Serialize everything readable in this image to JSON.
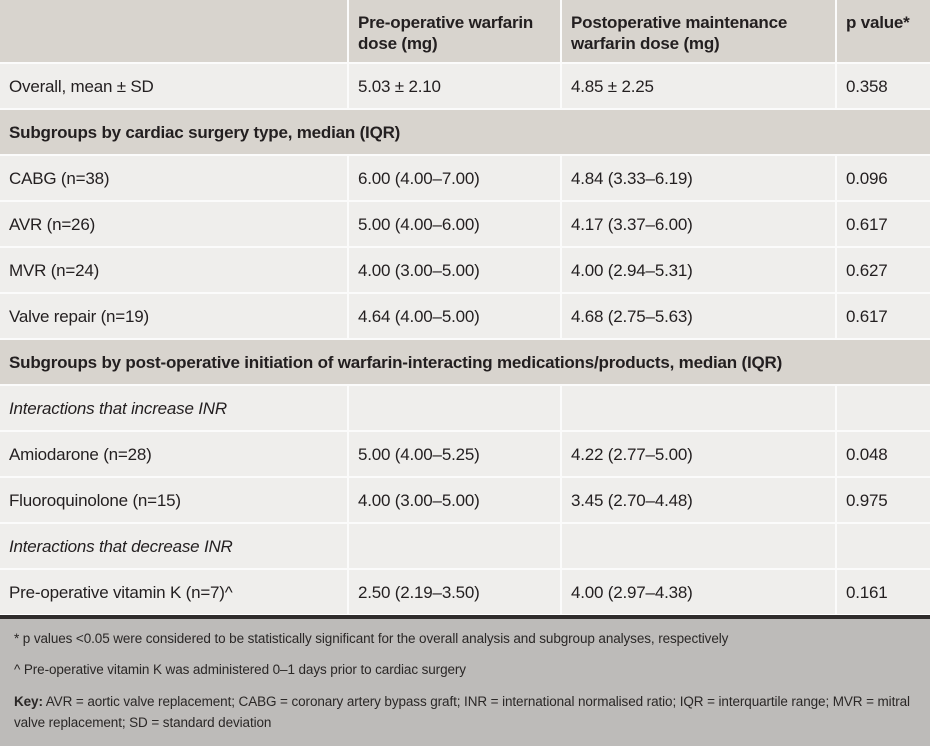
{
  "colors": {
    "header_bg": "#d8d4ce",
    "row_bg": "#efeeec",
    "footer_bg": "#bdbbb9",
    "rule": "#2f2c2b",
    "text": "#231f20"
  },
  "table": {
    "header": {
      "col0": "",
      "col1": "Pre-operative warfarin dose (mg)",
      "col2": "Postoperative maintenance warfarin dose (mg)",
      "col3": "p value*"
    },
    "rows": [
      {
        "type": "data",
        "label": "Overall, mean ± SD",
        "pre": "5.03 ± 2.10",
        "post": "4.85 ± 2.25",
        "p": "0.358"
      },
      {
        "type": "section",
        "label": "Subgroups by cardiac surgery type, median (IQR)"
      },
      {
        "type": "data",
        "label": "CABG (n=38)",
        "pre": "6.00 (4.00–7.00)",
        "post": "4.84 (3.33–6.19)",
        "p": "0.096"
      },
      {
        "type": "data",
        "label": "AVR (n=26)",
        "pre": "5.00 (4.00–6.00)",
        "post": "4.17 (3.37–6.00)",
        "p": "0.617"
      },
      {
        "type": "data",
        "label": "MVR (n=24)",
        "pre": "4.00 (3.00–5.00)",
        "post": "4.00 (2.94–5.31)",
        "p": "0.627"
      },
      {
        "type": "data",
        "label": "Valve repair (n=19)",
        "pre": "4.64 (4.00–5.00)",
        "post": "4.68 (2.75–5.63)",
        "p": "0.617"
      },
      {
        "type": "section",
        "label": "Subgroups by post-operative initiation of warfarin-interacting medications/products, median (IQR)"
      },
      {
        "type": "subhead",
        "label": "Interactions that increase INR",
        "pre": "",
        "post": "",
        "p": ""
      },
      {
        "type": "data",
        "label": "Amiodarone (n=28)",
        "pre": "5.00 (4.00–5.25)",
        "post": "4.22 (2.77–5.00)",
        "p": "0.048"
      },
      {
        "type": "data",
        "label": "Fluoroquinolone (n=15)",
        "pre": "4.00 (3.00–5.00)",
        "post": "3.45 (2.70–4.48)",
        "p": "0.975"
      },
      {
        "type": "subhead",
        "label": "Interactions that decrease INR",
        "pre": "",
        "post": "",
        "p": ""
      },
      {
        "type": "data",
        "label": "Pre-operative vitamin K (n=7)^",
        "pre": "2.50 (2.19–3.50)",
        "post": "4.00 (2.97–4.38)",
        "p": "0.161"
      }
    ]
  },
  "footnotes": {
    "fn1": "* p values <0.05 were considered to be statistically significant for the overall analysis and subgroup analyses, respectively",
    "fn2": "^ Pre-operative vitamin K was administered 0–1 days prior to cardiac surgery",
    "key_label": "Key:",
    "key_text": " AVR = aortic valve replacement; CABG = coronary artery bypass graft; INR = international normalised ratio; IQR = interquartile range; MVR = mitral valve replacement; SD = standard deviation"
  }
}
